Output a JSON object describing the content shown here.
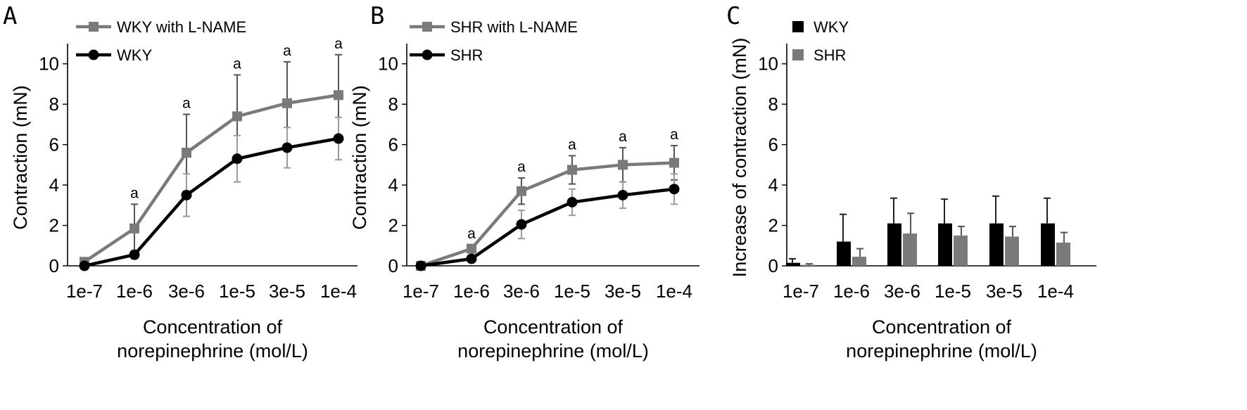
{
  "colors": {
    "dark": "#000000",
    "gray": "#7a7a7a",
    "error_gray": "#8c8c8c"
  },
  "chart_data": [
    {
      "panel_label": "A",
      "type": "line",
      "categories": [
        "1e-7",
        "1e-6",
        "3e-6",
        "1e-5",
        "3e-5",
        "1e-4"
      ],
      "xlabel": [
        "Concentration of",
        "norepinephrine (mol/L)"
      ],
      "ylabel": "Contraction (mN)",
      "ylim": [
        0,
        11
      ],
      "yticks": [
        0,
        2,
        4,
        6,
        8,
        10
      ],
      "legend_position": "top-left",
      "series": [
        {
          "name": "WKY with L-NAME",
          "color": "#7a7a7a",
          "marker": "square",
          "values": [
            0.2,
            1.85,
            5.6,
            7.4,
            8.05,
            8.45
          ],
          "errors": [
            0.0,
            1.2,
            1.9,
            2.05,
            2.05,
            2.0
          ],
          "annotations": [
            "",
            "a",
            "a",
            "a",
            "a",
            "a"
          ]
        },
        {
          "name": "WKY",
          "color": "#000000",
          "marker": "circle",
          "values": [
            0.0,
            0.55,
            3.5,
            5.3,
            5.85,
            6.3
          ],
          "errors": [
            0.0,
            0.2,
            1.05,
            1.15,
            1.0,
            1.05
          ],
          "annotations": [
            "",
            "",
            "",
            "",
            "",
            ""
          ]
        }
      ]
    },
    {
      "panel_label": "B",
      "type": "line",
      "categories": [
        "1e-7",
        "1e-6",
        "3e-6",
        "1e-5",
        "3e-5",
        "1e-4"
      ],
      "xlabel": [
        "Concentration of",
        "norepinephrine (mol/L)"
      ],
      "ylabel": "Contraction (mN)",
      "ylim": [
        0,
        11
      ],
      "yticks": [
        0,
        2,
        4,
        6,
        8,
        10
      ],
      "legend_position": "top-left",
      "series": [
        {
          "name": "SHR with L-NAME",
          "color": "#7a7a7a",
          "marker": "square",
          "values": [
            0.0,
            0.85,
            3.7,
            4.75,
            5.0,
            5.1
          ],
          "errors": [
            0.0,
            0.2,
            0.65,
            0.7,
            0.85,
            0.85
          ],
          "annotations": [
            "",
            "a",
            "a",
            "a",
            "a",
            "a"
          ]
        },
        {
          "name": "SHR",
          "color": "#000000",
          "marker": "circle",
          "values": [
            0.0,
            0.35,
            2.05,
            3.15,
            3.5,
            3.8
          ],
          "errors": [
            0.0,
            0.1,
            0.7,
            0.65,
            0.65,
            0.75
          ],
          "annotations": [
            "",
            "",
            "",
            "",
            "",
            ""
          ]
        }
      ]
    },
    {
      "panel_label": "C",
      "type": "bar",
      "categories": [
        "1e-7",
        "1e-6",
        "3e-6",
        "1e-5",
        "3e-5",
        "1e-4"
      ],
      "xlabel": [
        "Concentration of",
        "norepinephrine (mol/L)"
      ],
      "ylabel": "Increase of contraction (mN)",
      "ylim": [
        0,
        11
      ],
      "yticks": [
        0,
        2,
        4,
        6,
        8,
        10
      ],
      "legend_position": "top-left",
      "series": [
        {
          "name": "WKY",
          "color": "#000000",
          "values": [
            0.15,
            1.2,
            2.1,
            2.1,
            2.1,
            2.1
          ],
          "errors": [
            0.2,
            1.35,
            1.25,
            1.2,
            1.35,
            1.25
          ]
        },
        {
          "name": "SHR",
          "color": "#7a7a7a",
          "values": [
            0.05,
            0.45,
            1.6,
            1.5,
            1.45,
            1.15
          ],
          "errors": [
            0.05,
            0.4,
            1.0,
            0.45,
            0.5,
            0.5
          ]
        }
      ]
    }
  ]
}
